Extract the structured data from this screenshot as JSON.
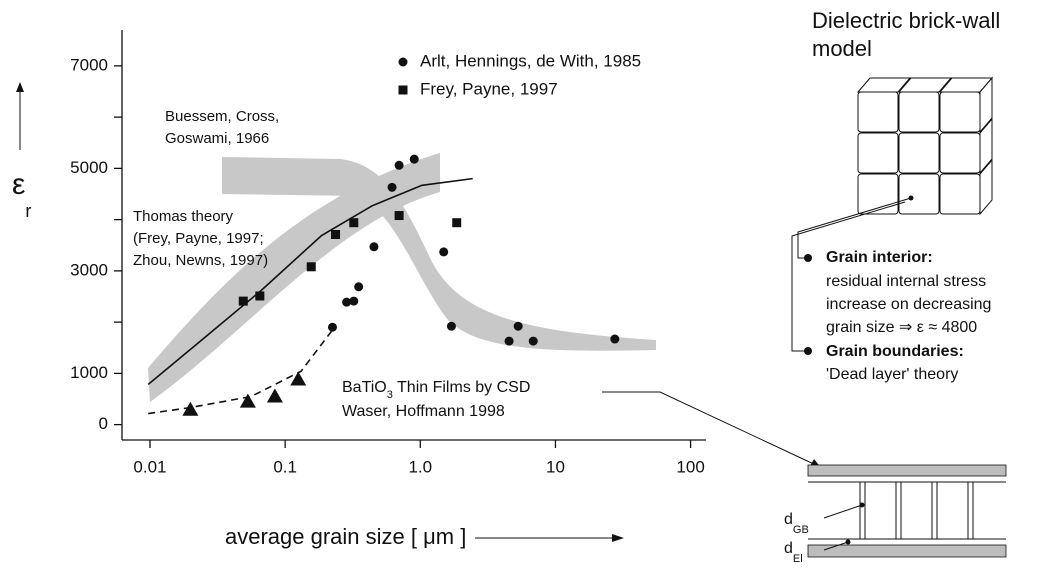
{
  "chart_data": {
    "type": "scatter",
    "x_label": "average grain size [ μm ]",
    "y_label": {
      "symbol": "ε",
      "sub": "r"
    },
    "xscale": "log",
    "xlim": [
      0.006,
      130
    ],
    "ylim": [
      -300,
      7700
    ],
    "xticks": [
      0.01,
      0.1,
      {
        "value": 1,
        "label": "1.0"
      },
      10,
      100
    ],
    "yticks": [
      0,
      1000,
      3000,
      5000,
      7000
    ],
    "yminorticks": [
      2000,
      4000,
      6000
    ],
    "series": [
      {
        "name": "Arlt, Hennings, de With, 1985",
        "marker": "circle",
        "color": "#111111",
        "x": [
          0.224,
          0.285,
          0.322,
          0.35,
          0.454,
          0.618,
          0.697,
          0.902,
          1.49,
          1.7,
          4.54,
          5.3,
          6.85,
          27.5
        ],
        "values": [
          1900,
          2390,
          2410,
          2690,
          3470,
          4630,
          5060,
          5180,
          3370,
          1920,
          1630,
          1920,
          1630,
          1670
        ]
      },
      {
        "name": "Frey, Payne, 1997",
        "marker": "square",
        "color": "#111111",
        "x": [
          0.049,
          0.065,
          0.156,
          0.236,
          0.322,
          0.697,
          1.86
        ],
        "values": [
          2410,
          2510,
          3080,
          3710,
          3940,
          4080,
          3940
        ]
      },
      {
        "marker": "triangle",
        "color": "#111111",
        "x": [
          0.0199,
          0.053,
          0.084,
          0.125
        ],
        "values": [
          290,
          450,
          550,
          880
        ]
      },
      {
        "kind": "line",
        "line_style": "solid",
        "color": "#111111",
        "x": [
          0.0097,
          0.0236,
          0.066,
          0.186,
          0.44,
          1.03,
          2.44
        ],
        "values": [
          784,
          1630,
          2610,
          3690,
          4270,
          4670,
          4800
        ]
      },
      {
        "kind": "line",
        "line_style": "dashed",
        "color": "#111111",
        "x": [
          0.0097,
          0.0199,
          0.056,
          0.131,
          0.22
        ],
        "values": [
          216,
          333,
          549,
          1040,
          1820
        ]
      }
    ],
    "annotations": [
      {
        "lines": [
          "Buessem, Cross,",
          "Goswami, 1966"
        ]
      },
      {
        "lines": [
          "Thomas theory",
          "(Frey, Payne, 1997;",
          "Zhou, Newns, 1997)"
        ]
      },
      {
        "text": "BaTiO",
        "sub": "3",
        "tail": " Thin Films by CSD"
      },
      {
        "lines": [
          "Waser, Hoffmann 1998"
        ]
      }
    ]
  },
  "diagram": {
    "title": [
      "Dielectric brick-wall",
      "model"
    ],
    "grain_interior": {
      "heading": "Grain interior:",
      "lines": [
        "residual internal stress",
        "increase on decreasing",
        "grain size ⇒ ε ≈ 4800"
      ]
    },
    "grain_boundaries": {
      "heading": "Grain boundaries:",
      "text": "'Dead layer' theory"
    },
    "labels": [
      {
        "text": "d",
        "sub": "GB"
      },
      {
        "text": "d",
        "sub": "El"
      }
    ]
  }
}
